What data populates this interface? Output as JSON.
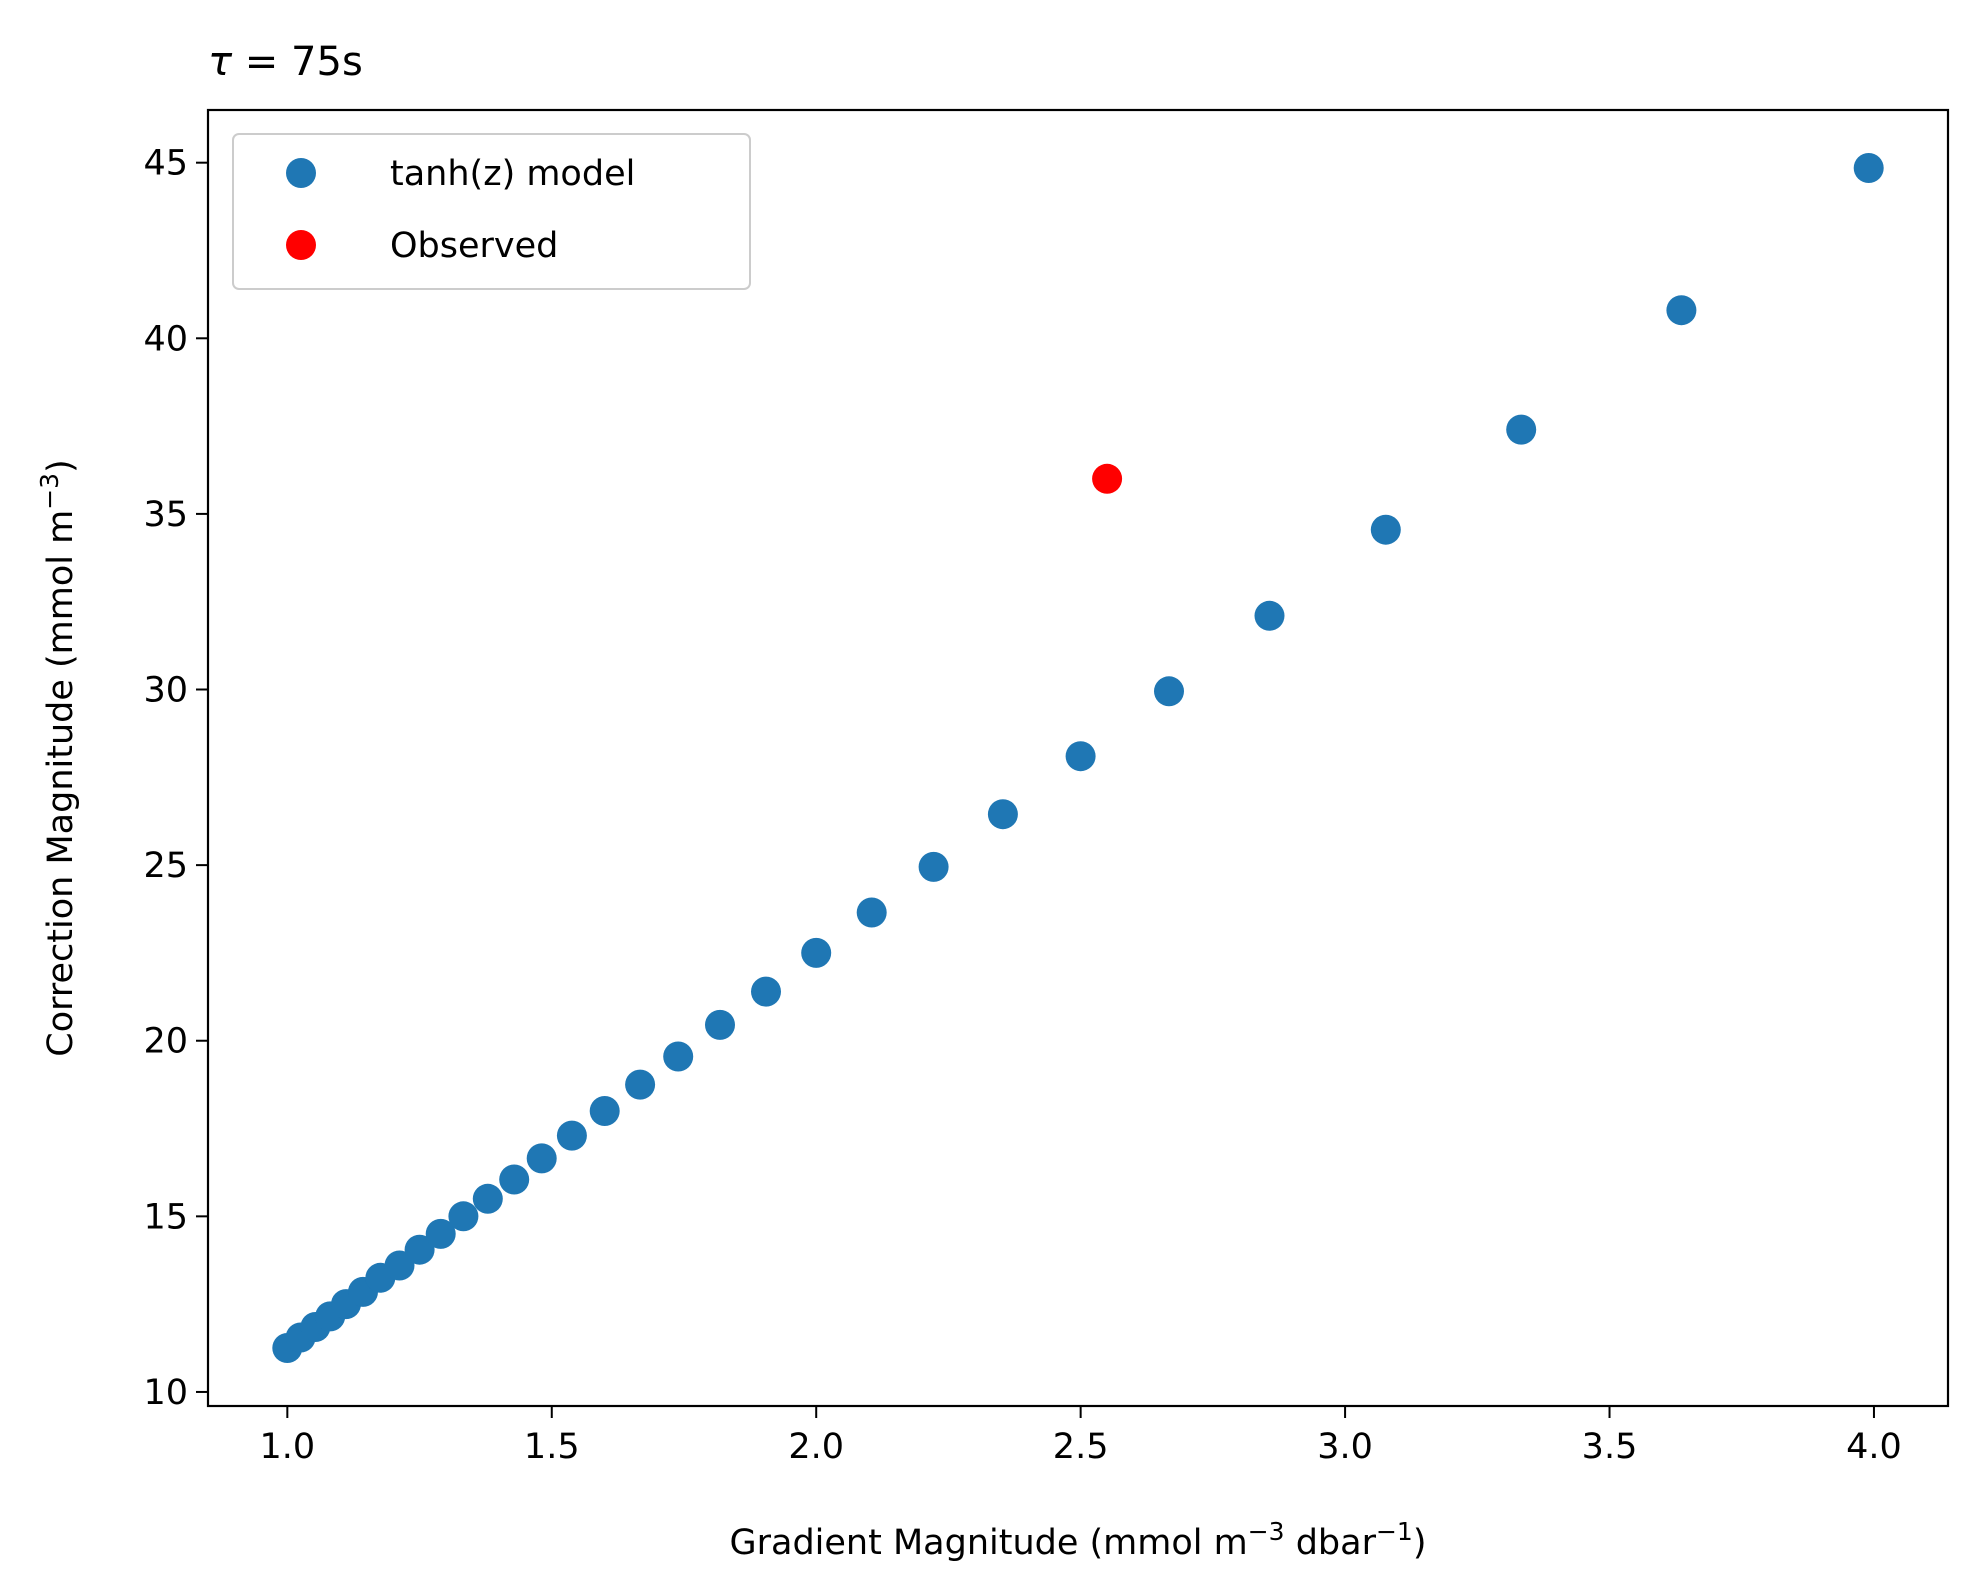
{
  "chart_data": {
    "type": "scatter",
    "title": "τ = 75s",
    "title_parts": {
      "symbol": "τ",
      "equals": " = ",
      "value": "75s"
    },
    "xlabel": "Gradient Magnitude (mmol m⁻³ dbar⁻¹)",
    "xlabel_parts": {
      "pre": "Gradient Magnitude (mmol m",
      "sup1": "−3",
      "mid": " dbar",
      "sup2": "−1",
      "post": ")"
    },
    "ylabel": "Correction Magnitude (mmol m⁻³)",
    "ylabel_parts": {
      "pre": "Correction Magnitude (mmol m",
      "sup": "−3",
      "post": ")"
    },
    "xlim": [
      0.85,
      4.14
    ],
    "ylim": [
      9.6,
      46.5
    ],
    "xticks": [
      1.0,
      1.5,
      2.0,
      2.5,
      3.0,
      3.5,
      4.0
    ],
    "xtick_labels": [
      "1.0",
      "1.5",
      "2.0",
      "2.5",
      "3.0",
      "3.5",
      "4.0"
    ],
    "yticks": [
      10,
      15,
      20,
      25,
      30,
      35,
      40,
      45
    ],
    "ytick_labels": [
      "10",
      "15",
      "20",
      "25",
      "30",
      "35",
      "40",
      "45"
    ],
    "grid": false,
    "legend_position": "top-left",
    "series": [
      {
        "name": "tanh(z) model",
        "color": "#1f77b4",
        "x": [
          1.0,
          1.025,
          1.053,
          1.081,
          1.111,
          1.143,
          1.176,
          1.212,
          1.25,
          1.29,
          1.333,
          1.379,
          1.429,
          1.481,
          1.538,
          1.6,
          1.667,
          1.739,
          1.818,
          1.905,
          2.0,
          2.105,
          2.222,
          2.353,
          2.5,
          2.667,
          2.857,
          3.077,
          3.333,
          3.636,
          3.99
        ],
        "y": [
          11.25,
          11.55,
          11.85,
          12.15,
          12.5,
          12.85,
          13.25,
          13.6,
          14.05,
          14.5,
          15.0,
          15.5,
          16.05,
          16.65,
          17.3,
          18.0,
          18.75,
          19.55,
          20.45,
          21.4,
          22.5,
          23.65,
          24.95,
          26.45,
          28.1,
          29.95,
          32.1,
          34.55,
          37.4,
          40.8,
          44.85
        ]
      },
      {
        "name": "Observed",
        "color": "#ff0000",
        "x": [
          2.55
        ],
        "y": [
          36.0
        ]
      }
    ]
  }
}
